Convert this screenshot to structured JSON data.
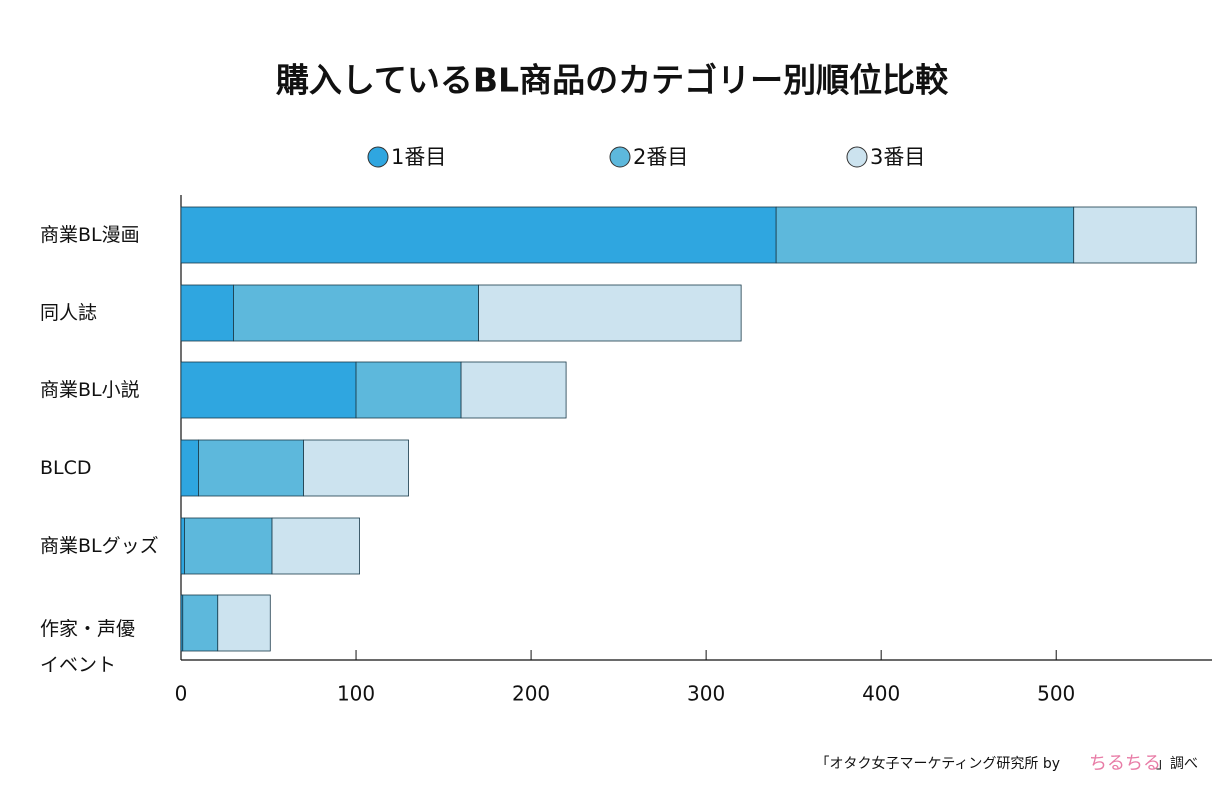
{
  "chart_data": {
    "type": "stacked-bar-horizontal",
    "title": "購入しているBL商品のカテゴリー別順位比較",
    "categories": [
      "商業BL漫画",
      "同人誌",
      "商業BL小説",
      "BLCD",
      "商業BLグッズ",
      "作家・声優\nイベント"
    ],
    "series": [
      {
        "name": "1番目",
        "color": "#2fa6e0",
        "values": [
          340,
          30,
          100,
          10,
          2,
          1
        ]
      },
      {
        "name": "2番目",
        "color": "#5db8dc",
        "values": [
          170,
          140,
          60,
          60,
          50,
          20
        ]
      },
      {
        "name": "3番目",
        "color": "#cce3ef",
        "values": [
          70,
          150,
          60,
          60,
          50,
          30
        ]
      }
    ],
    "xlim": [
      0,
      589
    ],
    "xticks": [
      0,
      100,
      200,
      300,
      400,
      500
    ],
    "grid": false,
    "footer": {
      "prefix": "「オタク女子マーケティング研究所 by",
      "logo": "ちるちる",
      "suffix": "」調べ"
    }
  }
}
